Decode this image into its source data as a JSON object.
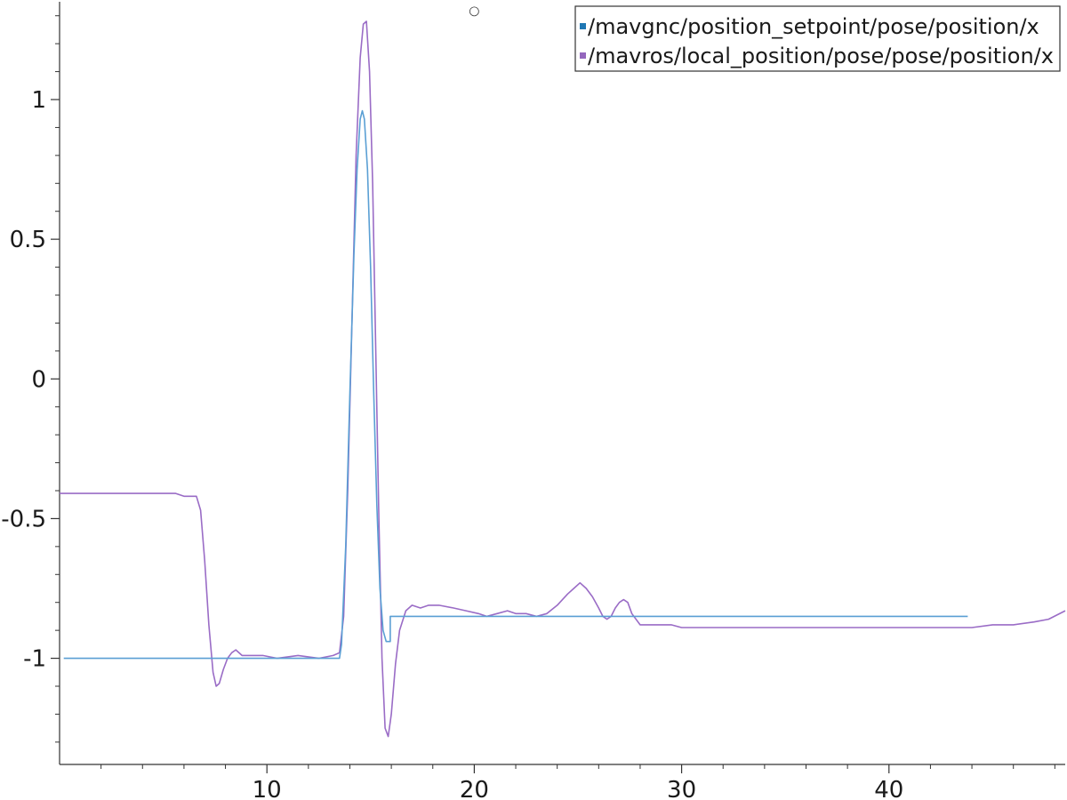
{
  "chart_data": {
    "type": "line",
    "title": "",
    "xlabel": "",
    "ylabel": "",
    "xlim": [
      0,
      48.5
    ],
    "ylim": [
      -1.38,
      1.35
    ],
    "grid": false,
    "legend_position": "top-right",
    "xticks": [
      10,
      20,
      30,
      40
    ],
    "xtick_labels": [
      "10",
      "20",
      "30",
      "40"
    ],
    "yticks": [
      1,
      0.5,
      0,
      -0.5,
      -1
    ],
    "ytick_labels": [
      "1",
      "0.5",
      "0",
      "-0.5",
      "-1"
    ],
    "marker_readout": {
      "symbol": "○",
      "x": 20,
      "y": 1.32
    },
    "series": [
      {
        "name": "/mavgnc/position_setpoint/pose/position/x",
        "color": "#1f77b4",
        "line_color": "#5a9fd4",
        "x": [
          0.2,
          13.5,
          13.6,
          13.8,
          14.0,
          14.2,
          14.35,
          14.5,
          14.6,
          14.7,
          14.85,
          15.0,
          15.15,
          15.3,
          15.45,
          15.6,
          15.75,
          15.95,
          15.95,
          16.0,
          16.5,
          20,
          25,
          30,
          35,
          40,
          43.8
        ],
        "y": [
          -1.0,
          -1.0,
          -0.95,
          -0.6,
          -0.05,
          0.45,
          0.75,
          0.93,
          0.96,
          0.93,
          0.75,
          0.4,
          -0.05,
          -0.45,
          -0.75,
          -0.9,
          -0.94,
          -0.94,
          -0.85,
          -0.85,
          -0.85,
          -0.85,
          -0.85,
          -0.85,
          -0.85,
          -0.85,
          -0.85
        ]
      },
      {
        "name": "/mavros/local_position/pose/pose/position/x",
        "color": "#9467bd",
        "line_color": "#9a6cc6",
        "x": [
          0,
          5.2,
          5.6,
          6.0,
          6.4,
          6.6,
          6.8,
          7.0,
          7.2,
          7.4,
          7.55,
          7.7,
          7.9,
          8.1,
          8.3,
          8.5,
          8.8,
          9.2,
          9.8,
          10.5,
          11.5,
          12.5,
          13.2,
          13.5,
          13.7,
          13.9,
          14.1,
          14.3,
          14.5,
          14.65,
          14.8,
          14.95,
          15.1,
          15.25,
          15.4,
          15.55,
          15.7,
          15.85,
          16.0,
          16.2,
          16.4,
          16.7,
          17.0,
          17.4,
          17.8,
          18.3,
          19.0,
          19.6,
          20.2,
          20.6,
          21.1,
          21.6,
          22.0,
          22.5,
          23.0,
          23.5,
          24.0,
          24.5,
          24.8,
          25.1,
          25.4,
          25.7,
          26.0,
          26.2,
          26.4,
          26.6,
          26.8,
          27.0,
          27.2,
          27.4,
          27.6,
          28.0,
          28.5,
          29.0,
          29.5,
          30.0,
          30.5,
          31.0,
          32.0,
          33.0,
          34.0,
          35.0,
          36.0,
          37.0,
          38.0,
          39.0,
          40.0,
          41.0,
          42.0,
          43.0,
          44.0,
          45.0,
          46.0,
          47.0,
          47.7,
          48.5
        ],
        "y": [
          -0.41,
          -0.41,
          -0.41,
          -0.42,
          -0.42,
          -0.42,
          -0.47,
          -0.65,
          -0.88,
          -1.05,
          -1.1,
          -1.09,
          -1.04,
          -1.0,
          -0.98,
          -0.97,
          -0.99,
          -0.99,
          -0.99,
          -1.0,
          -0.99,
          -1.0,
          -0.99,
          -0.98,
          -0.85,
          -0.4,
          0.2,
          0.8,
          1.15,
          1.27,
          1.28,
          1.1,
          0.7,
          0.1,
          -0.5,
          -1.0,
          -1.25,
          -1.28,
          -1.2,
          -1.02,
          -0.9,
          -0.83,
          -0.81,
          -0.82,
          -0.81,
          -0.81,
          -0.82,
          -0.83,
          -0.84,
          -0.85,
          -0.84,
          -0.83,
          -0.84,
          -0.84,
          -0.85,
          -0.84,
          -0.81,
          -0.77,
          -0.75,
          -0.73,
          -0.75,
          -0.78,
          -0.82,
          -0.85,
          -0.86,
          -0.85,
          -0.82,
          -0.8,
          -0.79,
          -0.8,
          -0.84,
          -0.88,
          -0.88,
          -0.88,
          -0.88,
          -0.89,
          -0.89,
          -0.89,
          -0.89,
          -0.89,
          -0.89,
          -0.89,
          -0.89,
          -0.89,
          -0.89,
          -0.89,
          -0.89,
          -0.89,
          -0.89,
          -0.89,
          -0.89,
          -0.88,
          -0.88,
          -0.87,
          -0.86,
          -0.83
        ]
      }
    ]
  }
}
